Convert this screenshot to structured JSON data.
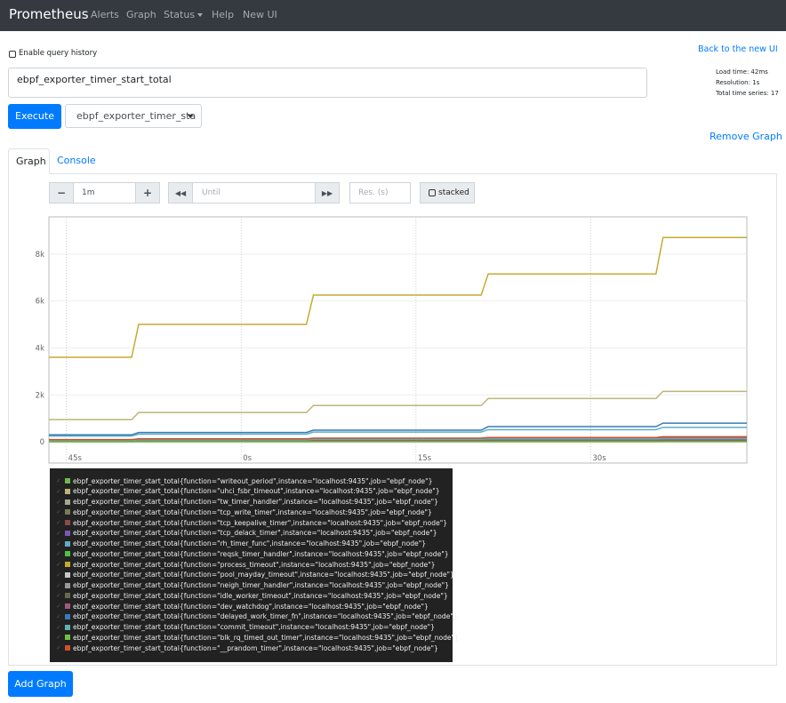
{
  "navbar": {
    "brand": "Prometheus",
    "links": [
      "Alerts",
      "Graph",
      "Status",
      "Help",
      "New UI"
    ]
  },
  "query_history_label": "Enable query history",
  "back_link": "Back to the new UI",
  "expression": "ebpf_exporter_timer_start_total",
  "stats": [
    "Load time: 42ms",
    "Resolution: 1s",
    "Total time series: 17"
  ],
  "execute_button": "Execute",
  "metric_select": "ebpf_exporter_timer_sta",
  "remove_graph": "Remove Graph",
  "tabs": [
    "Graph",
    "Console"
  ],
  "controls": {
    "range_decrease": "−",
    "range": "1m",
    "range_increase": "+",
    "until_placeholder": "Until",
    "resolution_placeholder": "Res. (s)",
    "stacked": "stacked"
  },
  "add_graph": "Add Graph",
  "chart_data": {
    "type": "line",
    "x": [
      43.5,
      50.6,
      51.2,
      65.6,
      66.2,
      80.6,
      81.2,
      95.6,
      96.2,
      103.4
    ],
    "xlim": [
      43.5,
      103.4
    ],
    "xticks": [
      {
        "value": 45,
        "label": "45s"
      },
      {
        "value": 60,
        "label": "0s"
      },
      {
        "value": 75,
        "label": "15s"
      },
      {
        "value": 90,
        "label": "30s"
      }
    ],
    "ylim": [
      -900,
      9580
    ],
    "yticks": [
      0,
      {
        "value": 2000,
        "label": "2k"
      },
      {
        "value": 4000,
        "label": "4k"
      },
      {
        "value": 6000,
        "label": "6k"
      },
      {
        "value": 8000,
        "label": "8k"
      }
    ],
    "grid": true,
    "series": [
      {
        "name": "ebpf_exporter_timer_start_total{function=\"writeout_period\",instance=\"localhost:9435\",job=\"ebpf_node\"}",
        "color": "#6fba4a",
        "values": [
          20,
          20,
          25,
          25,
          30,
          30,
          35,
          35,
          40,
          40
        ]
      },
      {
        "name": "ebpf_exporter_timer_start_total{function=\"uhci_fsbr_timeout\",instance=\"localhost:9435\",job=\"ebpf_node\"}",
        "color": "#bdb57a",
        "values": [
          950,
          950,
          1250,
          1250,
          1550,
          1550,
          1850,
          1850,
          2150,
          2150
        ]
      },
      {
        "name": "ebpf_exporter_timer_start_total{function=\"tw_timer_handler\",instance=\"localhost:9435\",job=\"ebpf_node\"}",
        "color": "#a3a890",
        "values": [
          60,
          60,
          80,
          80,
          100,
          100,
          120,
          120,
          140,
          140
        ]
      },
      {
        "name": "ebpf_exporter_timer_start_total{function=\"tcp_write_timer\",instance=\"localhost:9435\",job=\"ebpf_node\"}",
        "color": "#7b7a5a",
        "values": [
          30,
          30,
          40,
          40,
          50,
          50,
          60,
          60,
          70,
          70
        ]
      },
      {
        "name": "ebpf_exporter_timer_start_total{function=\"tcp_keepalive_timer\",instance=\"localhost:9435\",job=\"ebpf_node\"}",
        "color": "#8a4a4a",
        "values": [
          90,
          90,
          110,
          110,
          130,
          130,
          160,
          160,
          190,
          190
        ]
      },
      {
        "name": "ebpf_exporter_timer_start_total{function=\"tcp_delack_timer\",instance=\"localhost:9435\",job=\"ebpf_node\"}",
        "color": "#7a5ab0",
        "values": [
          40,
          40,
          50,
          50,
          60,
          60,
          70,
          70,
          80,
          80
        ]
      },
      {
        "name": "ebpf_exporter_timer_start_total{function=\"rh_timer_func\",instance=\"localhost:9435\",job=\"ebpf_node\"}",
        "color": "#5ab0c0",
        "values": [
          250,
          250,
          330,
          330,
          420,
          420,
          520,
          520,
          620,
          620
        ]
      },
      {
        "name": "ebpf_exporter_timer_start_total{function=\"reqsk_timer_handler\",instance=\"localhost:9435\",job=\"ebpf_node\"}",
        "color": "#50c040",
        "values": [
          5,
          5,
          5,
          5,
          10,
          10,
          10,
          10,
          15,
          15
        ]
      },
      {
        "name": "ebpf_exporter_timer_start_total{function=\"process_timeout\",instance=\"localhost:9435\",job=\"ebpf_node\"}",
        "color": "#c8aa30",
        "values": [
          3600,
          3600,
          5000,
          5000,
          6250,
          6250,
          7150,
          7150,
          8700,
          8700
        ]
      },
      {
        "name": "ebpf_exporter_timer_start_total{function=\"pool_mayday_timeout\",instance=\"localhost:9435\",job=\"ebpf_node\"}",
        "color": "#c8c8c8",
        "values": [
          10,
          10,
          12,
          12,
          14,
          14,
          16,
          16,
          18,
          18
        ]
      },
      {
        "name": "ebpf_exporter_timer_start_total{function=\"neigh_timer_handler\",instance=\"localhost:9435\",job=\"ebpf_node\"}",
        "color": "#999999",
        "values": [
          15,
          15,
          20,
          20,
          25,
          25,
          30,
          30,
          35,
          35
        ]
      },
      {
        "name": "ebpf_exporter_timer_start_total{function=\"idle_worker_timeout\",instance=\"localhost:9435\",job=\"ebpf_node\"}",
        "color": "#6a6a4a",
        "values": [
          25,
          25,
          30,
          30,
          35,
          35,
          40,
          40,
          45,
          45
        ]
      },
      {
        "name": "ebpf_exporter_timer_start_total{function=\"dev_watchdog\",instance=\"localhost:9435\",job=\"ebpf_node\"}",
        "color": "#a05a7a",
        "values": [
          50,
          50,
          60,
          60,
          70,
          70,
          80,
          80,
          90,
          90
        ]
      },
      {
        "name": "ebpf_exporter_timer_start_total{function=\"delayed_work_timer_fn\",instance=\"localhost:9435\",job=\"ebpf_node\"}",
        "color": "#3a7ab8",
        "values": [
          300,
          300,
          400,
          400,
          500,
          500,
          650,
          650,
          800,
          800
        ]
      },
      {
        "name": "ebpf_exporter_timer_start_total{function=\"commit_timeout\",instance=\"localhost:9435\",job=\"ebpf_node\"}",
        "color": "#60b0b0",
        "values": [
          70,
          70,
          90,
          90,
          110,
          110,
          130,
          130,
          150,
          150
        ]
      },
      {
        "name": "ebpf_exporter_timer_start_total{function=\"blk_rq_timed_out_timer\",instance=\"localhost:9435\",job=\"ebpf_node\"}",
        "color": "#70c040",
        "values": [
          5,
          5,
          6,
          6,
          7,
          7,
          8,
          8,
          9,
          9
        ]
      },
      {
        "name": "ebpf_exporter_timer_start_total{function=\"__prandom_timer\",instance=\"localhost:9435\",job=\"ebpf_node\"}",
        "color": "#d05030",
        "values": [
          100,
          100,
          130,
          130,
          160,
          160,
          190,
          190,
          220,
          220
        ]
      }
    ]
  }
}
